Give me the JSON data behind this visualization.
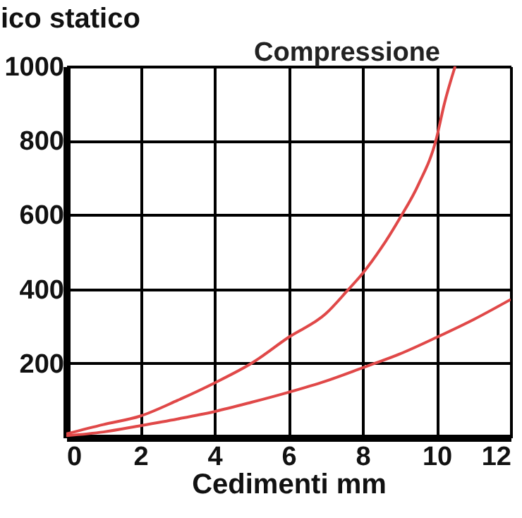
{
  "chart_data": {
    "type": "line",
    "title": "Compressione",
    "xlabel": "Cedimenti mm",
    "ylabel": "ico statico",
    "xlim": [
      0,
      12
    ],
    "ylim": [
      0,
      1000
    ],
    "xticks": [
      0,
      2,
      4,
      6,
      8,
      10,
      12
    ],
    "yticks": [
      200,
      400,
      600,
      800,
      1000
    ],
    "grid": true,
    "legend": false,
    "marker": "none",
    "line_style": "solid",
    "series": [
      {
        "color": "#e04848",
        "x": [
          0,
          1,
          2,
          3,
          4,
          5,
          6,
          7,
          7.6,
          8,
          8.5,
          9,
          9.5,
          10,
          10.2,
          10.5
        ],
        "values": [
          10,
          35,
          58,
          100,
          147,
          200,
          270,
          333,
          397,
          442,
          510,
          590,
          680,
          808,
          896,
          1000
        ]
      },
      {
        "color": "#e04848",
        "x": [
          0,
          1,
          2,
          3,
          4,
          5,
          6,
          7,
          8,
          9,
          10,
          11,
          12
        ],
        "values": [
          5,
          15,
          32,
          50,
          70,
          95,
          122,
          152,
          188,
          225,
          270,
          318,
          372
        ]
      }
    ]
  }
}
